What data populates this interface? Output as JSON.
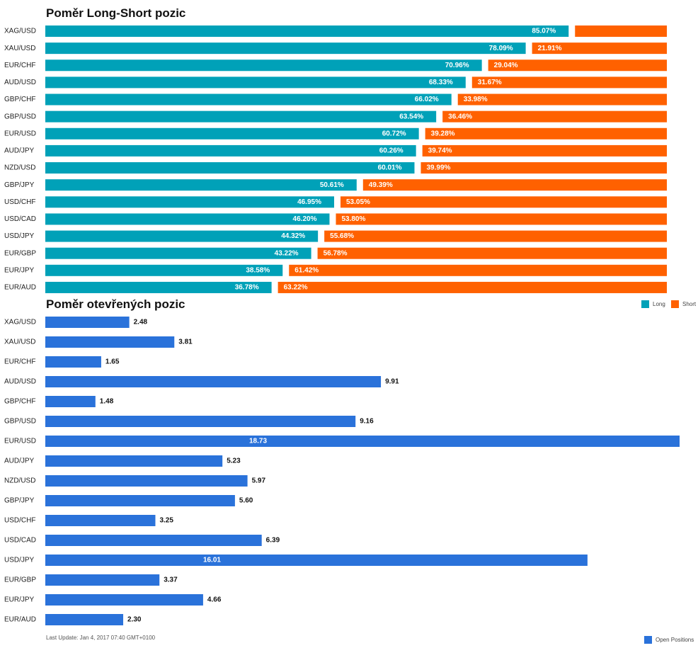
{
  "colors": {
    "long": "#00A1B8",
    "short": "#FF6100",
    "open": "#2A72DA"
  },
  "chart_data": [
    {
      "type": "bar",
      "title": "Poměr Long-Short pozic",
      "categories": [
        "XAG/USD",
        "XAU/USD",
        "EUR/CHF",
        "AUD/USD",
        "GBP/CHF",
        "GBP/USD",
        "EUR/USD",
        "AUD/JPY",
        "NZD/USD",
        "GBP/JPY",
        "USD/CHF",
        "USD/CAD",
        "USD/JPY",
        "EUR/GBP",
        "EUR/JPY",
        "EUR/AUD"
      ],
      "series": [
        {
          "name": "Long",
          "values": [
            85.07,
            78.09,
            70.96,
            68.33,
            66.02,
            63.54,
            60.72,
            60.26,
            60.01,
            50.61,
            46.95,
            46.2,
            44.32,
            43.22,
            38.58,
            36.78
          ],
          "labels": [
            "85.07%",
            "78.09%",
            "70.96%",
            "68.33%",
            "66.02%",
            "63.54%",
            "60.72%",
            "60.26%",
            "60.01%",
            "50.61%",
            "46.95%",
            "46.20%",
            "44.32%",
            "43.22%",
            "38.58%",
            "36.78%"
          ]
        },
        {
          "name": "Short",
          "values": [
            14.93,
            21.91,
            29.04,
            31.67,
            33.98,
            36.46,
            39.28,
            39.74,
            39.99,
            49.39,
            53.05,
            53.8,
            55.68,
            56.78,
            61.42,
            63.22
          ],
          "labels": [
            "",
            "21.91%",
            "29.04%",
            "31.67%",
            "33.98%",
            "36.46%",
            "39.28%",
            "39.74%",
            "39.99%",
            "49.39%",
            "53.05%",
            "53.80%",
            "55.68%",
            "56.78%",
            "61.42%",
            "63.22%"
          ]
        }
      ],
      "legend": "top-right"
    },
    {
      "type": "bar",
      "title": "Poměr otevřených pozic",
      "categories": [
        "XAG/USD",
        "XAU/USD",
        "EUR/CHF",
        "AUD/USD",
        "GBP/CHF",
        "GBP/USD",
        "EUR/USD",
        "AUD/JPY",
        "NZD/USD",
        "GBP/JPY",
        "USD/CHF",
        "USD/CAD",
        "USD/JPY",
        "EUR/GBP",
        "EUR/JPY",
        "EUR/AUD"
      ],
      "series": [
        {
          "name": "Open Positions",
          "values": [
            2.48,
            3.81,
            1.65,
            9.91,
            1.48,
            9.16,
            18.73,
            5.23,
            5.97,
            5.6,
            3.25,
            6.39,
            16.01,
            3.37,
            4.66,
            2.3
          ],
          "labels": [
            "2.48",
            "3.81",
            "1.65",
            "9.91",
            "1.48",
            "9.16",
            "18.73",
            "5.23",
            "5.97",
            "5.60",
            "3.25",
            "6.39",
            "16.01",
            "3.37",
            "4.66",
            "2.30"
          ]
        }
      ],
      "legend": "bottom-right"
    }
  ],
  "legend": {
    "long": "Long",
    "short": "Short",
    "open": "Open Positions"
  },
  "footer": "Last Update: Jan 4, 2017 07:40 GMT+0100"
}
